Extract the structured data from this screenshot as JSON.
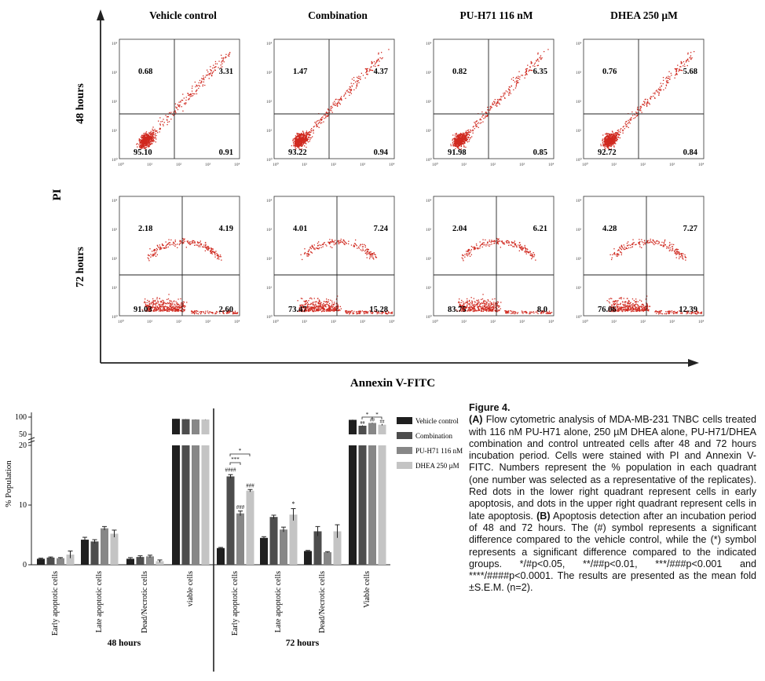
{
  "flow": {
    "y_axis_label": "PI",
    "x_axis_label": "Annexin V-FITC",
    "tick_labels": [
      "10⁰",
      "10¹",
      "10²",
      "10³",
      "10⁴"
    ],
    "conditions": [
      "Vehicle control",
      "Combination",
      "PU-H71 116 nM",
      "DHEA 250 µM"
    ],
    "rows": [
      {
        "label": "48 hours",
        "panels": [
          {
            "ul": "0.68",
            "ur": "3.31",
            "ll": "95.10",
            "lr": "0.91"
          },
          {
            "ul": "1.47",
            "ur": "4.37",
            "ll": "93.22",
            "lr": "0.94"
          },
          {
            "ul": "0.82",
            "ur": "6.35",
            "ll": "91.98",
            "lr": "0.85"
          },
          {
            "ul": "0.76",
            "ur": "5.68",
            "ll": "92.72",
            "lr": "0.84"
          }
        ]
      },
      {
        "label": "72 hours",
        "panels": [
          {
            "ul": "2.18",
            "ur": "4.19",
            "ll": "91.03",
            "lr": "2.60"
          },
          {
            "ul": "4.01",
            "ur": "7.24",
            "ll": "73.47",
            "lr": "15.28"
          },
          {
            "ul": "2.04",
            "ur": "6.21",
            "ll": "83.75",
            "lr": "8.0"
          },
          {
            "ul": "4.28",
            "ur": "7.27",
            "ll": "76.06",
            "lr": "12.39"
          }
        ]
      }
    ]
  },
  "chart_data": {
    "type": "bar",
    "ylabel": "% Population",
    "y_ticks": [
      "0",
      "10",
      "20",
      "50",
      "100"
    ],
    "ylim_lower": [
      0,
      20
    ],
    "ylim_upper": [
      50,
      100
    ],
    "legend_position": "right",
    "groups": [
      {
        "label": "48 hours",
        "categories": [
          "Early apoptotic cells",
          "Late apoptotic cells",
          "Dead/Necrotic cells",
          "viable cells"
        ]
      },
      {
        "label": "72 hours",
        "categories": [
          "Early apoptotic cells",
          "Late apoptotic cells",
          "Dead/Necrotic cells",
          "Viable cells"
        ]
      }
    ],
    "series": [
      {
        "name": "Vehicle control",
        "color": "#1f1f1f",
        "values": [
          1.0,
          4.2,
          1.0,
          95,
          2.8,
          4.5,
          2.3,
          92
        ],
        "errors": [
          0.1,
          0.4,
          0.2,
          0.5,
          0.1,
          0.2,
          0.1,
          0.6
        ]
      },
      {
        "name": "Combination",
        "color": "#4d4d4d",
        "values": [
          1.2,
          3.9,
          1.3,
          94,
          14.8,
          8.0,
          5.6,
          75
        ],
        "errors": [
          0.1,
          0.3,
          0.2,
          0.4,
          0.3,
          0.3,
          0.8,
          1.0
        ]
      },
      {
        "name": "PU-H71 116 nM",
        "color": "#878787",
        "values": [
          1.1,
          6.1,
          1.4,
          93,
          8.6,
          5.9,
          2.1,
          83
        ],
        "errors": [
          0.1,
          0.3,
          0.2,
          0.5,
          0.4,
          0.4,
          0.1,
          0.8
        ]
      },
      {
        "name": "DHEA 250 µM",
        "color": "#c4c4c4",
        "values": [
          1.7,
          5.2,
          0.6,
          93,
          12.4,
          8.4,
          5.6,
          78
        ],
        "errors": [
          0.6,
          0.6,
          0.2,
          0.4,
          0.2,
          1.0,
          1.1,
          2.0
        ]
      }
    ],
    "annotations": {
      "early_72": {
        "combination": "####",
        "puh71": "###",
        "dhea": "###",
        "bracket_1": "***",
        "bracket_2": "*"
      },
      "late_72": {
        "dhea": "*"
      },
      "viable_72": {
        "combination": "##",
        "puh71": "##",
        "dhea": "##",
        "bracket_1": "*",
        "bracket_2": "*"
      }
    }
  },
  "caption": {
    "title": "Figure 4.",
    "part_a_label": "(A)",
    "part_a_text": " Flow cytometric analysis of MDA-MB-231 TNBC cells treated with 116 nM PU-H71 alone, 250 µM DHEA alone, PU-H71/DHEA combination and control untreated cells after 48 and 72 hours incubation period. Cells were stained with PI and Annexin V-FITC. Numbers represent the % population in each quadrant (one number was selected as a representative of the replicates). Red dots in the lower right quadrant represent cells in early apoptosis, and dots in the upper right quadrant represent cells in late apoptosis.",
    "part_b_label": "(B)",
    "part_b_text": " Apoptosis detection after an incubation period of 48 and 72 hours. The (#) symbol represents a significant difference compared to the vehicle control, while the (*) symbol represents a significant difference compared to the indicated groups. */#p<0.05, **/##p<0.01, ***/###p<0.001 and ****/####p<0.0001. The results are presented as the mean fold ±S.E.M. (n=2)."
  },
  "colors": {
    "dots": "#d0291f",
    "axis": "#222222"
  }
}
